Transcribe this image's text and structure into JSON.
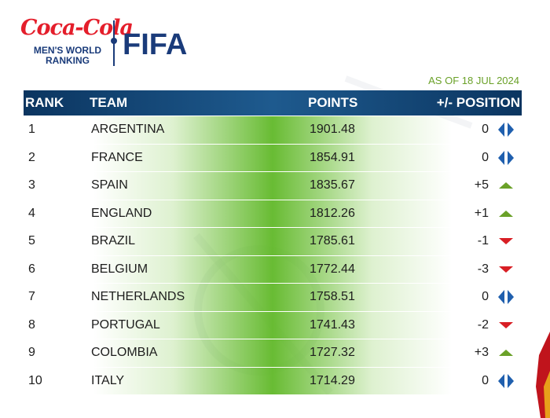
{
  "brand": {
    "sponsor": "Coca-Cola",
    "subtitle_line1": "MEN'S WORLD",
    "subtitle_line2": "RANKING",
    "org": "FIFA"
  },
  "as_of": "AS OF 18 JUL 2024",
  "columns": {
    "rank": "RANK",
    "team": "TEAM",
    "points": "POINTS",
    "position": "+/- POSITION"
  },
  "colors": {
    "header": "#0b3560",
    "accent_green": "#60b828",
    "up": "#6aa128",
    "down": "#d81e24",
    "same": "#1f5fae"
  },
  "rows": [
    {
      "rank": "1",
      "team": "ARGENTINA",
      "points": "1901.48",
      "change": "0",
      "trend": "same"
    },
    {
      "rank": "2",
      "team": "FRANCE",
      "points": "1854.91",
      "change": "0",
      "trend": "same"
    },
    {
      "rank": "3",
      "team": "SPAIN",
      "points": "1835.67",
      "change": "+5",
      "trend": "up"
    },
    {
      "rank": "4",
      "team": "ENGLAND",
      "points": "1812.26",
      "change": "+1",
      "trend": "up"
    },
    {
      "rank": "5",
      "team": "BRAZIL",
      "points": "1785.61",
      "change": "-1",
      "trend": "down"
    },
    {
      "rank": "6",
      "team": "BELGIUM",
      "points": "1772.44",
      "change": "-3",
      "trend": "down"
    },
    {
      "rank": "7",
      "team": "NETHERLANDS",
      "points": "1758.51",
      "change": "0",
      "trend": "same"
    },
    {
      "rank": "8",
      "team": "PORTUGAL",
      "points": "1741.43",
      "change": "-2",
      "trend": "down"
    },
    {
      "rank": "9",
      "team": "COLOMBIA",
      "points": "1727.32",
      "change": "+3",
      "trend": "up"
    },
    {
      "rank": "10",
      "team": "ITALY",
      "points": "1714.29",
      "change": "0",
      "trend": "same"
    }
  ]
}
